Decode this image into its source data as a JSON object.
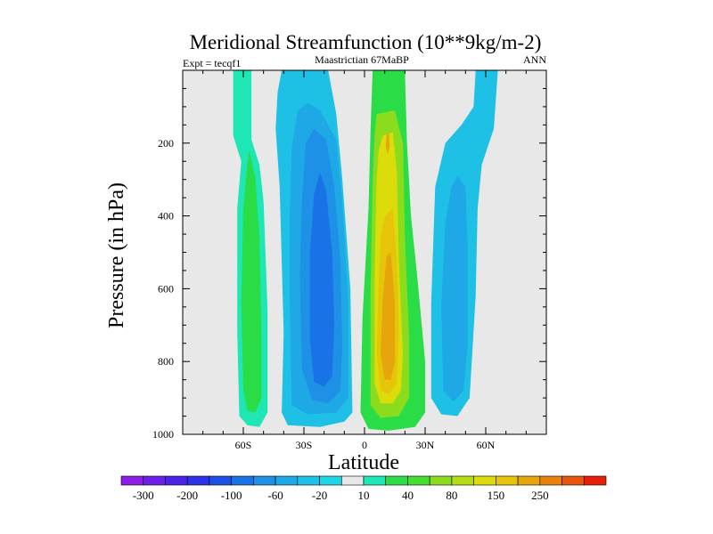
{
  "chart_data": {
    "type": "heatmap",
    "subtype": "filled-contour",
    "title": "Meridional Streamfunction (10**9kg/m-2)",
    "left_string": "Expt = tecqf1",
    "center_string": "Maastrictian 67MaBP",
    "right_string": "ANN",
    "xlabel": "Latitude",
    "ylabel": "Pressure (in hPa)",
    "xlim": [
      -90,
      90
    ],
    "ylim": [
      0,
      1000
    ],
    "y_reversed": true,
    "x_ticks": [
      {
        "value": -60,
        "label": "60S"
      },
      {
        "value": -30,
        "label": "30S"
      },
      {
        "value": 0,
        "label": "0"
      },
      {
        "value": 30,
        "label": "30N"
      },
      {
        "value": 60,
        "label": "60N"
      }
    ],
    "y_ticks": [
      {
        "value": 200,
        "label": "200"
      },
      {
        "value": 400,
        "label": "400"
      },
      {
        "value": 600,
        "label": "600"
      },
      {
        "value": 800,
        "label": "800"
      },
      {
        "value": 1000,
        "label": "1000"
      }
    ],
    "colorbar": {
      "colors": [
        "#8c1ce6",
        "#6e1ee6",
        "#4b23e6",
        "#2d32e6",
        "#1e50e6",
        "#1a73e6",
        "#1e90e6",
        "#1ea8e6",
        "#1ec0e6",
        "#1ed6e6",
        "#e8e8e8",
        "#1ee6b4",
        "#2adc46",
        "#46dc32",
        "#8cdc1e",
        "#b4dc14",
        "#dcdc0a",
        "#e6c40a",
        "#e6a50a",
        "#e6820a",
        "#e6550a",
        "#e61e0a"
      ],
      "labels": [
        {
          "after_box": 1,
          "text": "-300"
        },
        {
          "after_box": 3,
          "text": "-200"
        },
        {
          "after_box": 5,
          "text": "-100"
        },
        {
          "after_box": 7,
          "text": "-60"
        },
        {
          "after_box": 9,
          "text": "-20"
        },
        {
          "after_box": 11,
          "text": "10"
        },
        {
          "after_box": 13,
          "text": "40"
        },
        {
          "after_box": 15,
          "text": "80"
        },
        {
          "after_box": 17,
          "text": "150"
        },
        {
          "after_box": 19,
          "text": "250"
        }
      ]
    },
    "background_color": "#e8e8e8",
    "cells": [
      {
        "name": "sh-polar-outer",
        "color": "#1ee6b4",
        "polygon": [
          [
            -65,
            0
          ],
          [
            -56,
            0
          ],
          [
            -56,
            190
          ],
          [
            -52,
            260
          ],
          [
            -50,
            360
          ],
          [
            -48,
            660
          ],
          [
            -48,
            940
          ],
          [
            -52,
            980
          ],
          [
            -58,
            975
          ],
          [
            -62,
            950
          ],
          [
            -63,
            720
          ],
          [
            -63,
            380
          ],
          [
            -61,
            250
          ],
          [
            -65,
            180
          ]
        ]
      },
      {
        "name": "sh-polar-core",
        "color": "#2adc46",
        "polygon": [
          [
            -57,
            220
          ],
          [
            -54,
            300
          ],
          [
            -52,
            460
          ],
          [
            -51,
            720
          ],
          [
            -51,
            900
          ],
          [
            -54,
            940
          ],
          [
            -58,
            935
          ],
          [
            -60,
            880
          ],
          [
            -61,
            640
          ],
          [
            -60,
            380
          ],
          [
            -58,
            260
          ]
        ]
      },
      {
        "name": "sh-hadley-outer",
        "color": "#1ec0e6",
        "polygon": [
          [
            -41,
            0
          ],
          [
            -18,
            0
          ],
          [
            -14,
            120
          ],
          [
            -11,
            300
          ],
          [
            -7,
            600
          ],
          [
            -6,
            940
          ],
          [
            -10,
            965
          ],
          [
            -22,
            980
          ],
          [
            -38,
            975
          ],
          [
            -41,
            940
          ],
          [
            -40,
            720
          ],
          [
            -42,
            320
          ],
          [
            -44,
            160
          ],
          [
            -43,
            60
          ]
        ]
      },
      {
        "name": "sh-hadley-ring2",
        "color": "#1ea8e6",
        "polygon": [
          [
            -28,
            90
          ],
          [
            -22,
            110
          ],
          [
            -14,
            190
          ],
          [
            -11,
            360
          ],
          [
            -8,
            640
          ],
          [
            -8,
            900
          ],
          [
            -14,
            940
          ],
          [
            -28,
            945
          ],
          [
            -36,
            920
          ],
          [
            -37,
            640
          ],
          [
            -37,
            400
          ],
          [
            -36,
            210
          ],
          [
            -33,
            110
          ]
        ]
      },
      {
        "name": "sh-hadley-ring3",
        "color": "#1e90e6",
        "polygon": [
          [
            -25,
            160
          ],
          [
            -19,
            190
          ],
          [
            -15,
            320
          ],
          [
            -12,
            520
          ],
          [
            -11,
            760
          ],
          [
            -12,
            880
          ],
          [
            -18,
            915
          ],
          [
            -26,
            905
          ],
          [
            -31,
            820
          ],
          [
            -32,
            560
          ],
          [
            -31,
            360
          ],
          [
            -29,
            200
          ]
        ]
      },
      {
        "name": "sh-hadley-core",
        "color": "#1a73e6",
        "polygon": [
          [
            -22,
            280
          ],
          [
            -19,
            330
          ],
          [
            -16,
            500
          ],
          [
            -15,
            700
          ],
          [
            -16,
            840
          ],
          [
            -20,
            870
          ],
          [
            -25,
            855
          ],
          [
            -27,
            740
          ],
          [
            -27,
            500
          ],
          [
            -25,
            340
          ]
        ]
      },
      {
        "name": "nh-hadley-outer",
        "color": "#2adc46",
        "polygon": [
          [
            4,
            0
          ],
          [
            20,
            0
          ],
          [
            21,
            200
          ],
          [
            23,
            400
          ],
          [
            26,
            560
          ],
          [
            30,
            800
          ],
          [
            30,
            940
          ],
          [
            25,
            980
          ],
          [
            12,
            990
          ],
          [
            2,
            985
          ],
          [
            -2,
            940
          ],
          [
            -1,
            680
          ],
          [
            2,
            380
          ],
          [
            3,
            160
          ]
        ]
      },
      {
        "name": "nh-hadley-ring2",
        "color": "#8cdc1e",
        "polygon": [
          [
            6,
            120
          ],
          [
            15,
            110
          ],
          [
            19,
            200
          ],
          [
            20,
            460
          ],
          [
            22,
            720
          ],
          [
            22,
            900
          ],
          [
            17,
            950
          ],
          [
            8,
            955
          ],
          [
            3,
            920
          ],
          [
            3,
            600
          ],
          [
            4,
            300
          ],
          [
            5,
            180
          ]
        ]
      },
      {
        "name": "nh-hadley-ring3",
        "color": "#dcdc0a",
        "polygon": [
          [
            9,
            180
          ],
          [
            14,
            170
          ],
          [
            16,
            280
          ],
          [
            17,
            520
          ],
          [
            19,
            780
          ],
          [
            18,
            880
          ],
          [
            14,
            915
          ],
          [
            8,
            915
          ],
          [
            5,
            860
          ],
          [
            5,
            560
          ],
          [
            6,
            300
          ],
          [
            7,
            220
          ]
        ]
      },
      {
        "name": "nh-hadley-ring4",
        "color": "#e6c40a",
        "polygon": [
          [
            10,
            400
          ],
          [
            14,
            380
          ],
          [
            16,
            520
          ],
          [
            17,
            700
          ],
          [
            16,
            860
          ],
          [
            12,
            890
          ],
          [
            8,
            880
          ],
          [
            6,
            780
          ],
          [
            7,
            580
          ],
          [
            8,
            460
          ]
        ]
      },
      {
        "name": "nh-hadley-core",
        "color": "#e6a50a",
        "polygon": [
          [
            11,
            510
          ],
          [
            13,
            500
          ],
          [
            15,
            640
          ],
          [
            15,
            800
          ],
          [
            13,
            850
          ],
          [
            10,
            850
          ],
          [
            8,
            780
          ],
          [
            9,
            630
          ]
        ]
      },
      {
        "name": "nh-hadley-upper-max",
        "color": "#e6a50a",
        "polygon": [
          [
            11,
            175
          ],
          [
            12,
            172
          ],
          [
            12.5,
            210
          ],
          [
            11.5,
            230
          ],
          [
            10.5,
            210
          ]
        ]
      },
      {
        "name": "nh-ferrel-outer",
        "color": "#1ec0e6",
        "polygon": [
          [
            55,
            0
          ],
          [
            66,
            0
          ],
          [
            64,
            160
          ],
          [
            58,
            260
          ],
          [
            56,
            380
          ],
          [
            55,
            620
          ],
          [
            52,
            900
          ],
          [
            46,
            950
          ],
          [
            38,
            945
          ],
          [
            33,
            900
          ],
          [
            33,
            640
          ],
          [
            35,
            320
          ],
          [
            40,
            200
          ],
          [
            48,
            150
          ],
          [
            54,
            100
          ]
        ]
      },
      {
        "name": "nh-ferrel-core",
        "color": "#1ea8e6",
        "polygon": [
          [
            46,
            290
          ],
          [
            50,
            320
          ],
          [
            51,
            480
          ],
          [
            51,
            760
          ],
          [
            49,
            880
          ],
          [
            44,
            910
          ],
          [
            39,
            880
          ],
          [
            38,
            650
          ],
          [
            40,
            420
          ],
          [
            43,
            320
          ]
        ]
      }
    ]
  }
}
